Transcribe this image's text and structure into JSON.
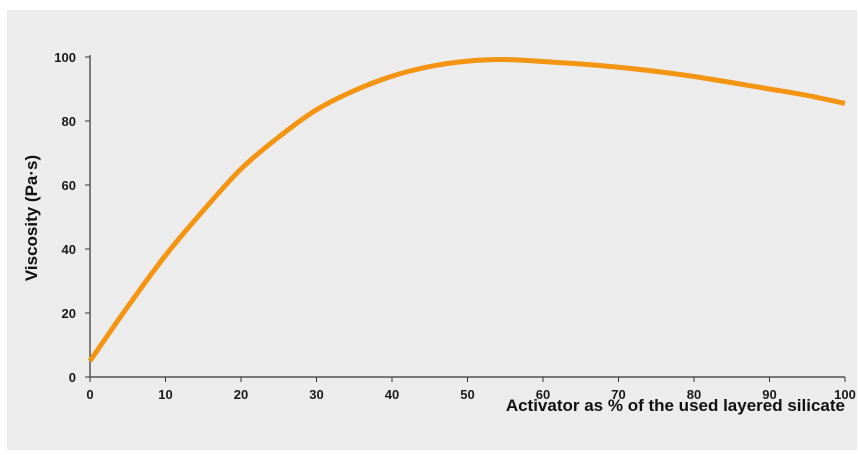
{
  "chart_data": {
    "type": "line",
    "title": "",
    "xlabel": "Activator as % of the used layered silicate",
    "ylabel": "Viscosity (Pa·s)",
    "xlim": [
      0,
      100
    ],
    "ylim": [
      0,
      100
    ],
    "x_ticks": [
      "0",
      "10",
      "20",
      "30",
      "40",
      "50",
      "60",
      "70",
      "80",
      "90",
      "100"
    ],
    "y_ticks": [
      "0",
      "20",
      "40",
      "60",
      "80",
      "100"
    ],
    "grid": false,
    "legend": "none",
    "series": [
      {
        "color": "#f39412",
        "x": [
          0,
          5,
          10,
          15,
          20,
          25,
          30,
          35,
          40,
          45,
          50,
          55,
          60,
          65,
          70,
          75,
          80,
          85,
          90,
          95,
          100
        ],
        "y": [
          5,
          22,
          38,
          52,
          65,
          75,
          83.5,
          89.5,
          94,
          97,
          98.7,
          99.2,
          98.6,
          97.8,
          96.8,
          95.5,
          93.9,
          92,
          90,
          88,
          85.5
        ]
      }
    ]
  }
}
